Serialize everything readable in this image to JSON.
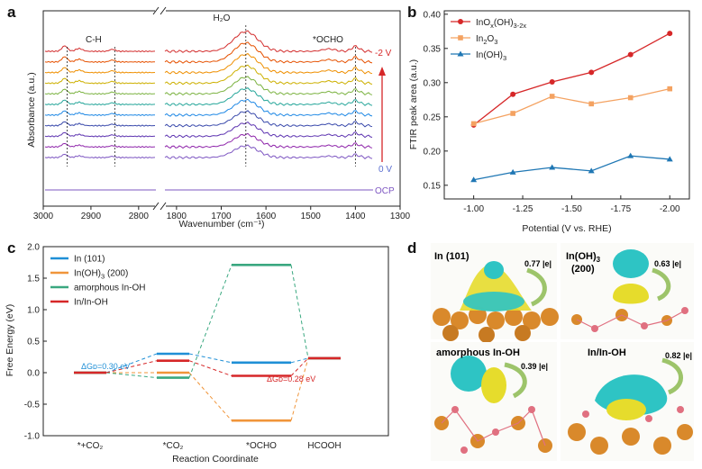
{
  "panel_letters": {
    "a": "a",
    "b": "b",
    "c": "c",
    "d": "d"
  },
  "chart_data": [
    {
      "panel": "a",
      "type": "line",
      "title": "",
      "xlabel": "Wavenumber (cm⁻¹)",
      "ylabel": "Absorbance (a.u.)",
      "x_axis_reversed": true,
      "x_ticks_left": [
        "3000",
        "2900",
        "2800"
      ],
      "x_ticks_right": [
        "1800",
        "1700",
        "1600",
        "1500",
        "1400",
        "1300"
      ],
      "xlim_left": [
        3000,
        2760
      ],
      "xlim_right": [
        1830,
        1300
      ],
      "annotations": {
        "ch": "C-H",
        "h2o": "H₂O",
        "ocho": "*OCHO"
      },
      "potential_labels": {
        "top": "-2 V",
        "bottom": "0 V",
        "ocp": "OCP"
      },
      "marker_lines_cm1": [
        2950,
        2850,
        1645,
        1400
      ],
      "series_count": 11,
      "series_note_colors": [
        "#d32f2f",
        "#e65100",
        "#ef8f00",
        "#cdb000",
        "#7cb342",
        "#26a69a",
        "#1e88e5",
        "#3949ab",
        "#5e35b1",
        "#8e24aa",
        "#7e57c2"
      ],
      "ocp_color": "#7e57c2",
      "arrow_color": "#d62728"
    },
    {
      "panel": "b",
      "type": "line",
      "title": "",
      "xlabel": "Potential (V vs. RHE)",
      "ylabel": "FTIR peak area (a.u.)",
      "categories": [
        "-1.00",
        "-1.25",
        "-1.50",
        "-1.75",
        "-2.00"
      ],
      "x": [
        -1.0,
        -1.2,
        -1.4,
        -1.6,
        -1.8,
        -2.0
      ],
      "xlim": [
        -0.85,
        -2.1
      ],
      "ylim": [
        0.13,
        0.405
      ],
      "yticks": [
        "0.15",
        "0.20",
        "0.25",
        "0.30",
        "0.35",
        "0.40"
      ],
      "legend_placement": "top-left",
      "series": [
        {
          "name": "InOx(OH)3-2x",
          "name_base": "InO",
          "name_sub1": "x",
          "name_mid": "(OH)",
          "name_sub2": "3-2x",
          "color": "#d62728",
          "marker": "circle",
          "values": [
            0.238,
            0.283,
            0.301,
            0.315,
            0.341,
            0.372
          ]
        },
        {
          "name": "In2O3",
          "name_base": "In",
          "name_sub1": "2",
          "name_mid": "O",
          "name_sub2": "3",
          "color": "#f4a261",
          "marker": "square",
          "values": [
            0.24,
            0.255,
            0.28,
            0.269,
            0.278,
            0.291
          ]
        },
        {
          "name": "In(OH)3",
          "name_base": "In(OH)",
          "name_sub1": "3",
          "name_mid": "",
          "name_sub2": "",
          "color": "#1f77b4",
          "marker": "triangle",
          "values": [
            0.158,
            0.169,
            0.176,
            0.171,
            0.193,
            0.188
          ]
        }
      ]
    },
    {
      "panel": "c",
      "type": "line",
      "title": "",
      "xlabel": "Reaction Coordinate",
      "ylabel": "Free Energy (eV)",
      "categories": [
        "*+CO₂",
        "*CO₂",
        "*OCHO",
        "HCOOH"
      ],
      "ylim": [
        -1.0,
        2.0
      ],
      "yticks": [
        "-1.0",
        "-0.5",
        "0.0",
        "0.5",
        "1.0",
        "1.5",
        "2.0"
      ],
      "legend_placement": "top-left",
      "series": [
        {
          "name": "In (101)",
          "color": "#1f8fd6",
          "values": [
            0.0,
            0.3,
            0.16,
            0.23
          ]
        },
        {
          "name": "In(OH)3 (200)",
          "name_base": "In(OH)",
          "name_sub": "3",
          "name_tail": " (200)",
          "color": "#f0953a",
          "values": [
            0.0,
            0.0,
            -0.76,
            0.23
          ]
        },
        {
          "name": "amorphous In-OH",
          "color": "#3aa880",
          "values": [
            0.0,
            -0.08,
            1.71,
            0.23
          ]
        },
        {
          "name": "In/In-OH",
          "color": "#d62728",
          "values": [
            0.0,
            0.19,
            -0.05,
            0.23
          ]
        }
      ],
      "annotations": [
        {
          "text": "ΔGᴅ=0.30 eV",
          "color": "#1f8fd6"
        },
        {
          "text": "ΔGᴅ=0.28 eV",
          "color": "#d62728"
        }
      ]
    }
  ],
  "panel_d": {
    "images": [
      {
        "label": "In (101)",
        "charge": "0.77 |e|"
      },
      {
        "label_line1": "In(OH)",
        "label_sub": "3",
        "label_line2": "(200)",
        "charge": "0.63 |e|"
      },
      {
        "label": "amorphous In-OH",
        "charge": "0.39 |e|"
      },
      {
        "label": "In/In-OH",
        "charge": "0.82 |e|"
      }
    ],
    "colors": {
      "cyan": "#2ec4c4",
      "yellow": "#e6dc2c",
      "orange": "#d9892b",
      "pink": "#e07080",
      "arrow": "#9dc46a"
    }
  }
}
